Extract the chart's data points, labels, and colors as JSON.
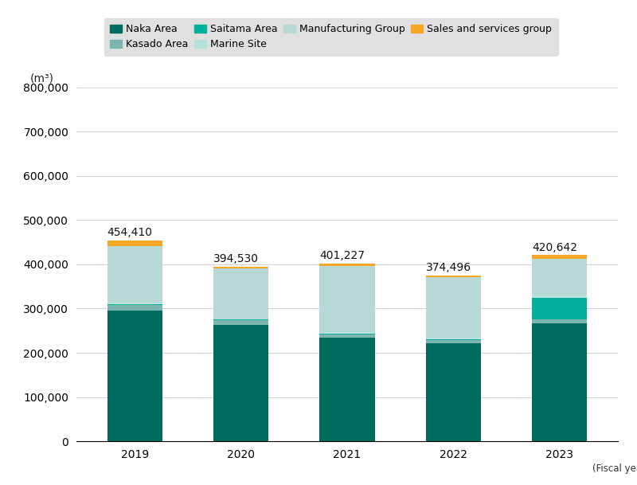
{
  "years": [
    "2019",
    "2020",
    "2021",
    "2022",
    "2023"
  ],
  "totals": [
    454410,
    394530,
    401227,
    374496,
    420642
  ],
  "segments": {
    "Naka Area": [
      295000,
      263000,
      234000,
      221000,
      267000
    ],
    "Kasado Area": [
      13000,
      10000,
      8000,
      8000,
      8000
    ],
    "Saitama Area": [
      2500,
      2000,
      2000,
      2000,
      50000
    ],
    "Marine Site": [
      3500,
      2500,
      2500,
      2500,
      6000
    ],
    "Manufacturing Group": [
      128000,
      113500,
      150300,
      137500,
      82000
    ],
    "Sales and services group": [
      12410,
      3530,
      4427,
      3496,
      7642
    ]
  },
  "colors": {
    "Naka Area": "#006b5f",
    "Kasado Area": "#7ab5b0",
    "Saitama Area": "#00b09a",
    "Marine Site": "#b5e0dc",
    "Manufacturing Group": "#b8d8d5",
    "Sales and services group": "#f5a623"
  },
  "ylim": [
    0,
    800000
  ],
  "yticks": [
    0,
    100000,
    200000,
    300000,
    400000,
    500000,
    600000,
    700000,
    800000
  ],
  "ylabel": "(m³)",
  "fiscal_year_label": "(Fiscal year)",
  "background_color": "#ffffff",
  "legend_bg": "#e0e0e0",
  "bar_width": 0.52,
  "label_fontsize": 10,
  "tick_fontsize": 10
}
